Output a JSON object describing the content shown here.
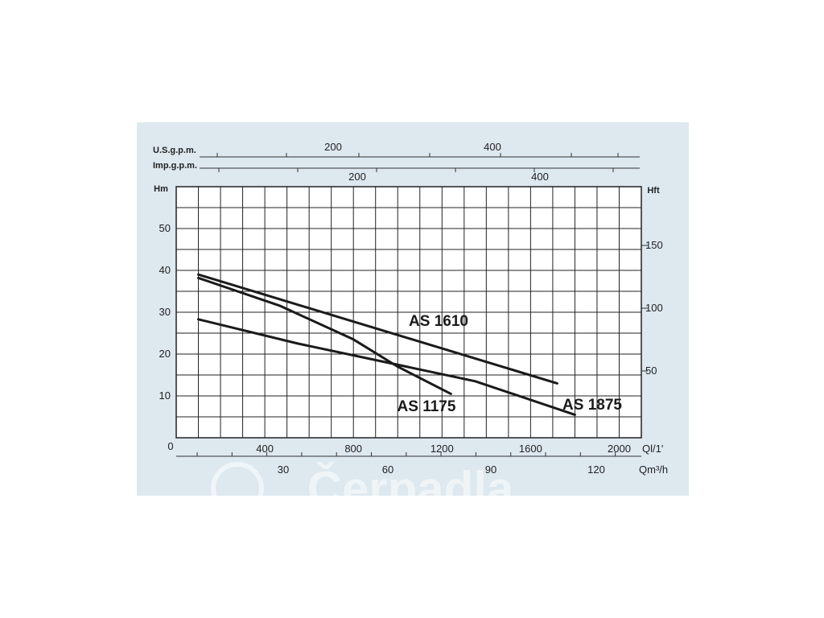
{
  "chart_data": {
    "type": "line",
    "title": "",
    "axes": {
      "x_primary": {
        "label": "Ql/1'",
        "ticks": [
          "400",
          "800",
          "1200",
          "1600",
          "2000"
        ],
        "range": [
          0,
          2100
        ]
      },
      "x_secondary": {
        "label": "Qm³/h",
        "ticks": [
          "30",
          "60",
          "90",
          "120"
        ]
      },
      "x_us_gpm": {
        "label": "U.S.g.p.m.",
        "ticks": [
          "200",
          "400"
        ]
      },
      "x_imp_gpm": {
        "label": "Imp.g.p.m.",
        "ticks": [
          "200",
          "400"
        ]
      },
      "y_left": {
        "label": "Hm",
        "ticks": [
          "0",
          "10",
          "20",
          "30",
          "40",
          "50"
        ],
        "range": [
          0,
          60
        ]
      },
      "y_right": {
        "label": "Hft",
        "ticks": [
          "50",
          "100",
          "150"
        ]
      }
    },
    "grid": true,
    "series": [
      {
        "name": "AS 1610",
        "points": [
          [
            100,
            39
          ],
          [
            1720,
            13
          ]
        ]
      },
      {
        "name": "AS 1175",
        "points": [
          [
            100,
            38.2
          ],
          [
            470,
            31.5
          ],
          [
            800,
            23.5
          ],
          [
            1000,
            17
          ],
          [
            1240,
            10.5
          ]
        ]
      },
      {
        "name": "AS 1875",
        "points": [
          [
            100,
            28.3
          ],
          [
            550,
            22.5
          ],
          [
            950,
            18
          ],
          [
            1350,
            13.5
          ],
          [
            1800,
            5.5
          ]
        ]
      }
    ],
    "watermark": "Čerpadla"
  }
}
